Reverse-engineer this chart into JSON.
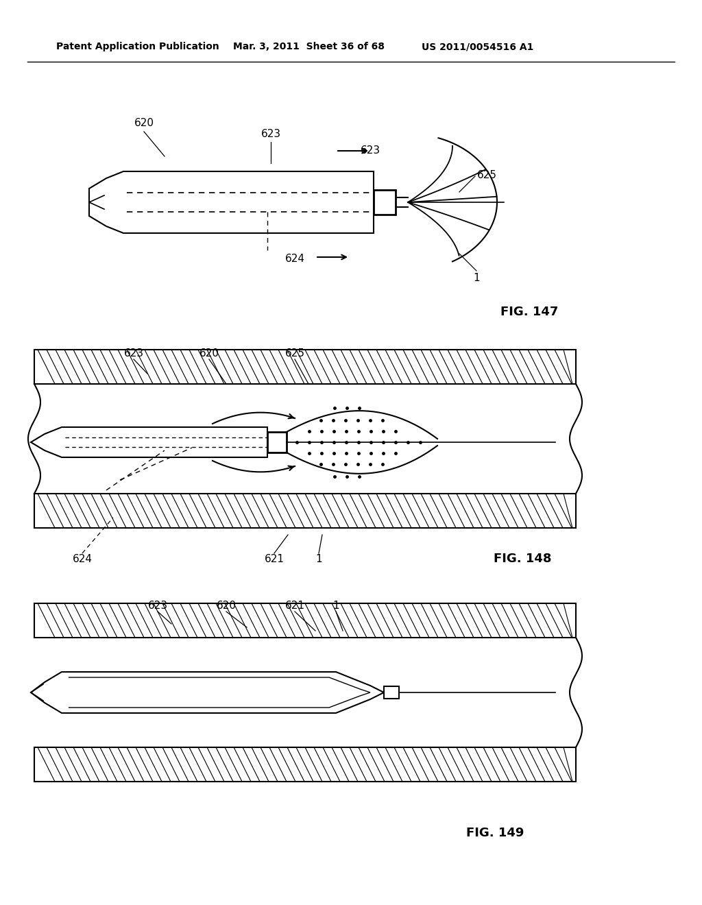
{
  "bg_color": "#ffffff",
  "header_left": "Patent Application Publication",
  "header_mid": "Mar. 3, 2011  Sheet 36 of 68",
  "header_right": "US 2011/0054516 A1",
  "fig147_label": "FIG. 147",
  "fig148_label": "FIG. 148",
  "fig149_label": "FIG. 149",
  "line_color": "#000000",
  "text_color": "#000000"
}
